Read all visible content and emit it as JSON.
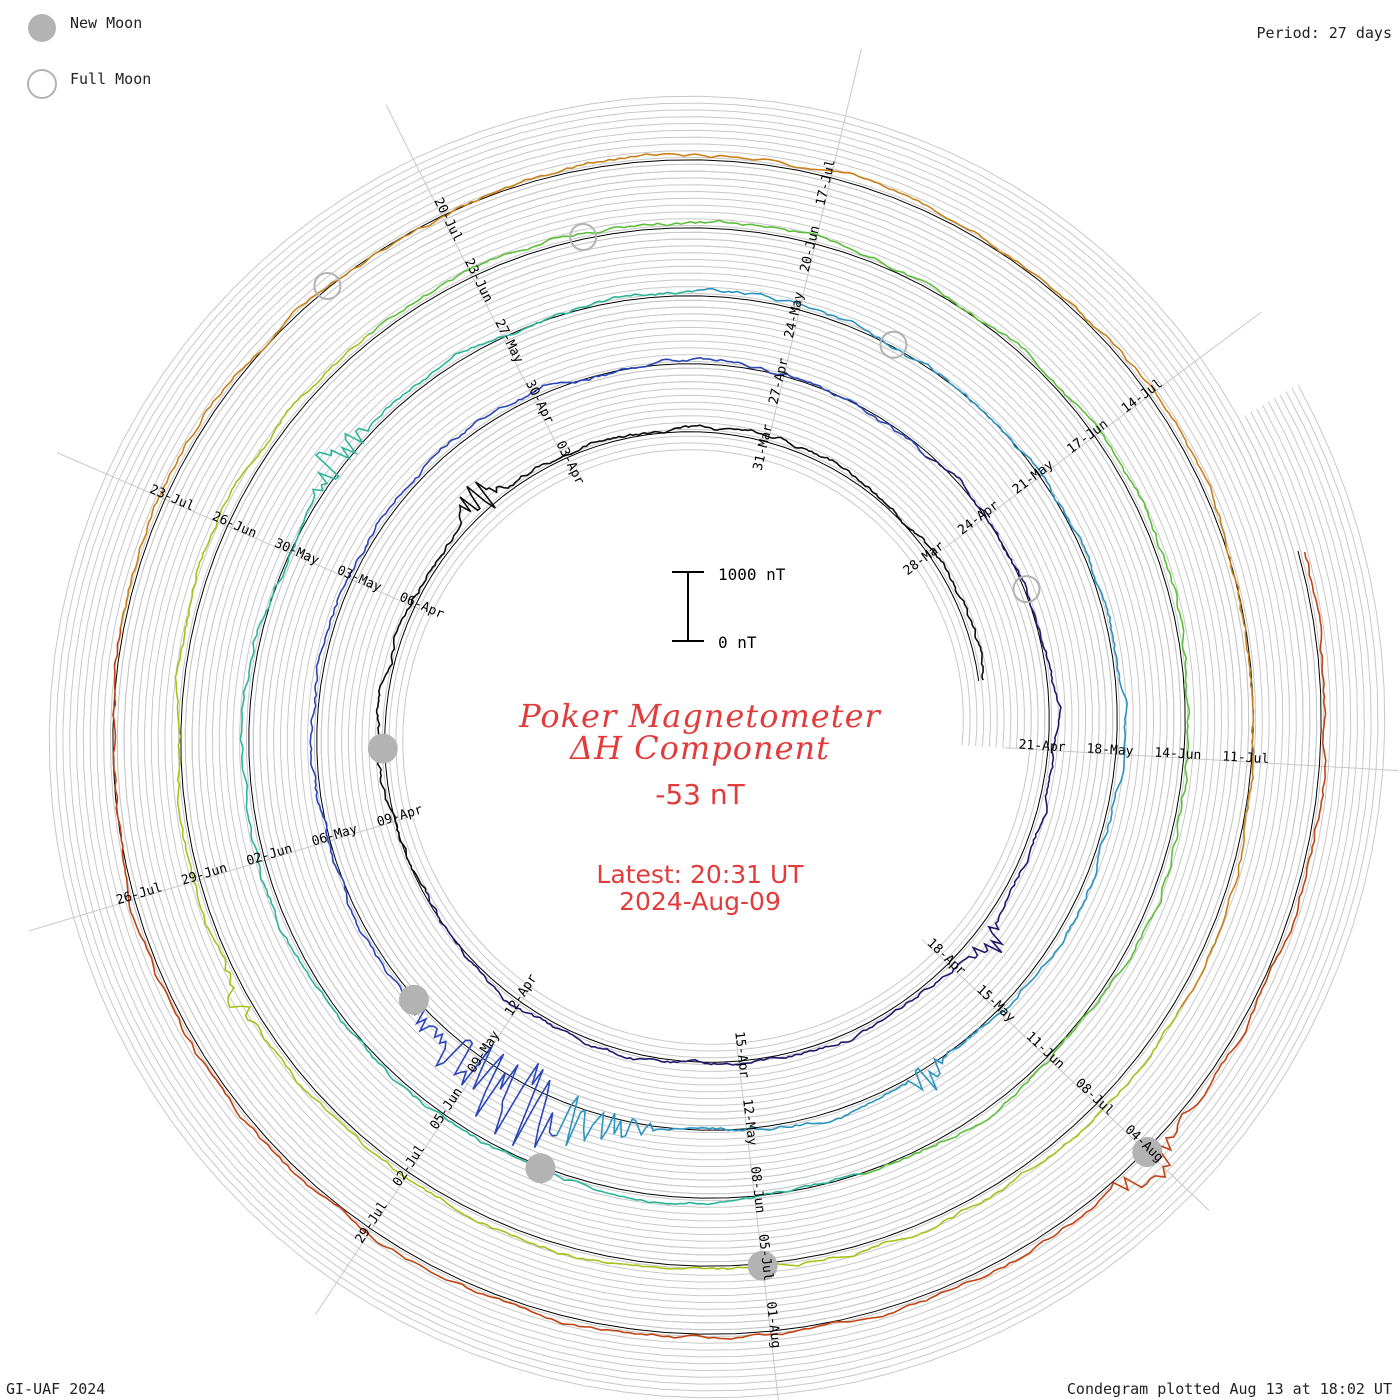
{
  "header": {
    "legend": [
      {
        "label": "New Moon",
        "marker": "filled-gray-circle"
      },
      {
        "label": "Full Moon",
        "marker": "open-gray-circle"
      }
    ],
    "period": "Period: 27 days"
  },
  "footer": {
    "credit": "GI-UAF 2024",
    "plotted": "Condegram plotted Aug 13 at 18:02 UT"
  },
  "center": {
    "title_line1": "Poker Magnetometer",
    "title_line2": "ΔH Component",
    "current_value": "-53 nT",
    "latest_time": "Latest: 20:31 UT",
    "latest_date": "2024-Aug-09",
    "scale_top": "1000 nT",
    "scale_bottom": "0 nT"
  },
  "colors": {
    "accent_red": "#e23b3b",
    "grid": "#c8c8c8",
    "moon": "#b3b3b3",
    "ring_colors": [
      "#0d0d0d",
      "#1f1a6e",
      "#2a46b8",
      "#2b94c0",
      "#2cb59a",
      "#5cbf3a",
      "#a8c21d",
      "#c8821a",
      "#c24312"
    ]
  },
  "chart_data": {
    "type": "line",
    "subtype": "spiral condegram",
    "period_days": 27,
    "value_unit": "nT",
    "scale_bar_nT": [
      0,
      1000
    ],
    "date_labels": [
      "28-Mar",
      "31-Mar",
      "03-Apr",
      "06-Apr",
      "09-Apr",
      "12-Apr",
      "15-Apr",
      "18-Apr",
      "21-Apr",
      "24-Apr",
      "27-Apr",
      "30-Apr",
      "03-May",
      "06-May",
      "09-May",
      "12-May",
      "15-May",
      "18-May",
      "21-May",
      "24-May",
      "27-May",
      "30-May",
      "02-Jun",
      "05-Jun",
      "08-Jun",
      "11-Jun",
      "14-Jun",
      "17-Jun",
      "20-Jun",
      "23-Jun",
      "26-Jun",
      "29-Jun",
      "02-Jul",
      "05-Jul",
      "08-Jul",
      "11-Jul",
      "14-Jul",
      "17-Jul",
      "20-Jul",
      "23-Jul",
      "26-Jul",
      "29-Jul",
      "01-Aug",
      "04-Aug"
    ],
    "new_moon_dates": [
      "08-Apr",
      "08-May",
      "06-Jun",
      "05-Jul",
      "04-Aug"
    ],
    "full_moon_dates": [
      "23-Apr",
      "23-May",
      "22-Jun",
      "21-Jul"
    ],
    "latest_value_nT": -53,
    "latest_time": "2024-Aug-09 20:31 UT"
  }
}
